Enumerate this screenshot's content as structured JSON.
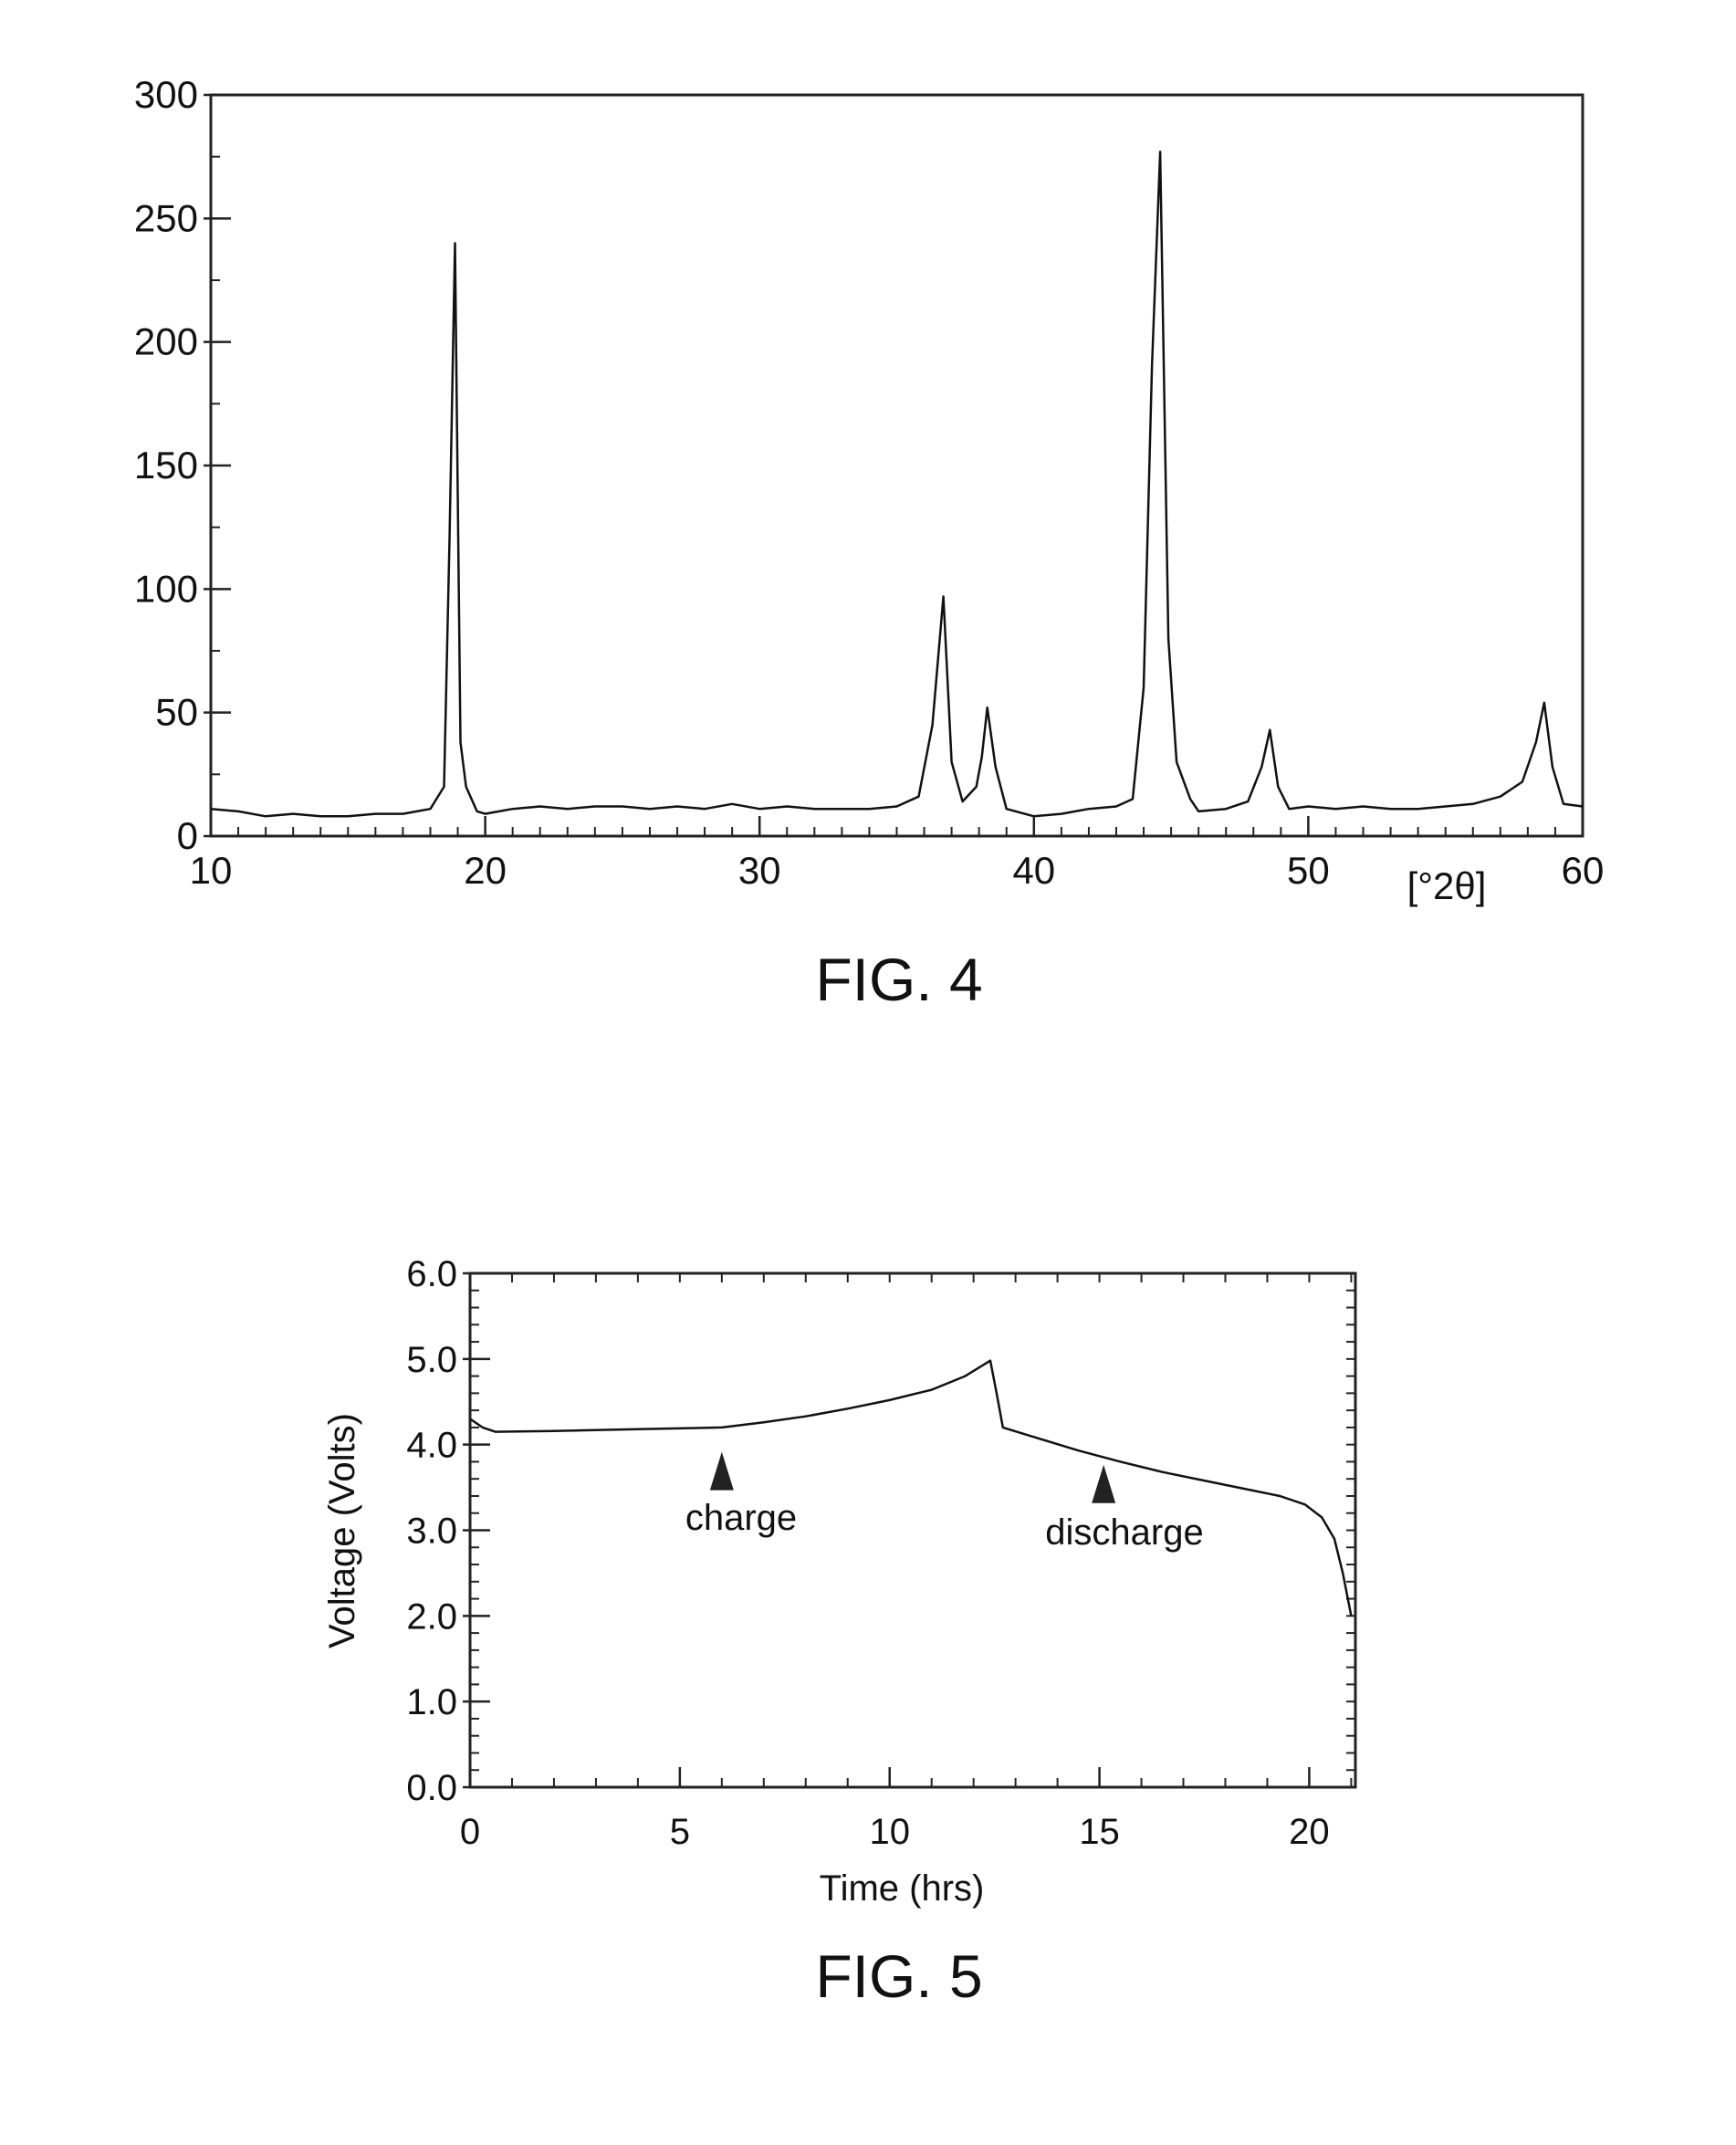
{
  "chart_data": [
    {
      "type": "line",
      "caption": "FIG. 4",
      "xlabel": "[°2θ]",
      "ylabel": "",
      "xlim": [
        10,
        60
      ],
      "ylim": [
        0,
        300
      ],
      "xticks": [
        10,
        20,
        30,
        40,
        50,
        60
      ],
      "yticks": [
        0,
        50,
        100,
        150,
        200,
        250,
        300
      ],
      "grid": false,
      "x": [
        10,
        11,
        12,
        13,
        14,
        15,
        16,
        17,
        18,
        18.5,
        18.7,
        18.9,
        19.1,
        19.3,
        19.7,
        20,
        21,
        22,
        23,
        24,
        25,
        26,
        27,
        28,
        29,
        30,
        31,
        32,
        33,
        34,
        35,
        35.8,
        36.3,
        36.7,
        37.0,
        37.4,
        37.9,
        38.1,
        38.3,
        38.6,
        39,
        40,
        41,
        42,
        43,
        43.6,
        44.0,
        44.3,
        44.6,
        44.9,
        45.2,
        45.7,
        46,
        47,
        47.8,
        48.3,
        48.6,
        48.9,
        49.3,
        50,
        51,
        52,
        53,
        54,
        55,
        56,
        57,
        57.8,
        58.3,
        58.6,
        58.9,
        59.3,
        60
      ],
      "y": [
        11,
        10,
        8,
        9,
        8,
        8,
        9,
        9,
        11,
        20,
        120,
        240,
        38,
        20,
        10,
        9,
        11,
        12,
        11,
        12,
        12,
        11,
        12,
        11,
        13,
        11,
        12,
        11,
        11,
        11,
        12,
        16,
        45,
        97,
        30,
        14,
        20,
        32,
        52,
        28,
        11,
        8,
        9,
        11,
        12,
        15,
        60,
        190,
        277,
        80,
        30,
        15,
        10,
        11,
        14,
        28,
        43,
        20,
        11,
        12,
        11,
        12,
        11,
        11,
        12,
        13,
        16,
        22,
        38,
        54,
        28,
        13,
        12
      ]
    },
    {
      "type": "line",
      "caption": "FIG. 5",
      "xlabel": "Time (hrs)",
      "ylabel": "Voltage (Volts)",
      "xlim": [
        0,
        21.1
      ],
      "ylim": [
        0.0,
        6.0
      ],
      "xticks": [
        0,
        5,
        10,
        15,
        20
      ],
      "yticks": [
        "0.0",
        "1.0",
        "2.0",
        "3.0",
        "4.0",
        "5.0",
        "6.0"
      ],
      "grid": false,
      "x": [
        0,
        0.3,
        0.6,
        2,
        4,
        6,
        7,
        8,
        9,
        10,
        11,
        11.8,
        12.4,
        12.55,
        12.7,
        13.5,
        14.5,
        15.5,
        16.5,
        17.5,
        18.5,
        19.3,
        19.9,
        20.3,
        20.6,
        20.8,
        21.0
      ],
      "y": [
        4.3,
        4.2,
        4.15,
        4.16,
        4.18,
        4.2,
        4.26,
        4.33,
        4.42,
        4.52,
        4.64,
        4.8,
        4.98,
        4.6,
        4.2,
        4.08,
        3.93,
        3.8,
        3.68,
        3.58,
        3.48,
        3.4,
        3.3,
        3.15,
        2.9,
        2.5,
        2.0
      ],
      "annotations": [
        {
          "text": "charge",
          "x": 6.0,
          "y": 4.0
        },
        {
          "text": "discharge",
          "x": 15.1,
          "y": 3.85
        }
      ]
    }
  ]
}
